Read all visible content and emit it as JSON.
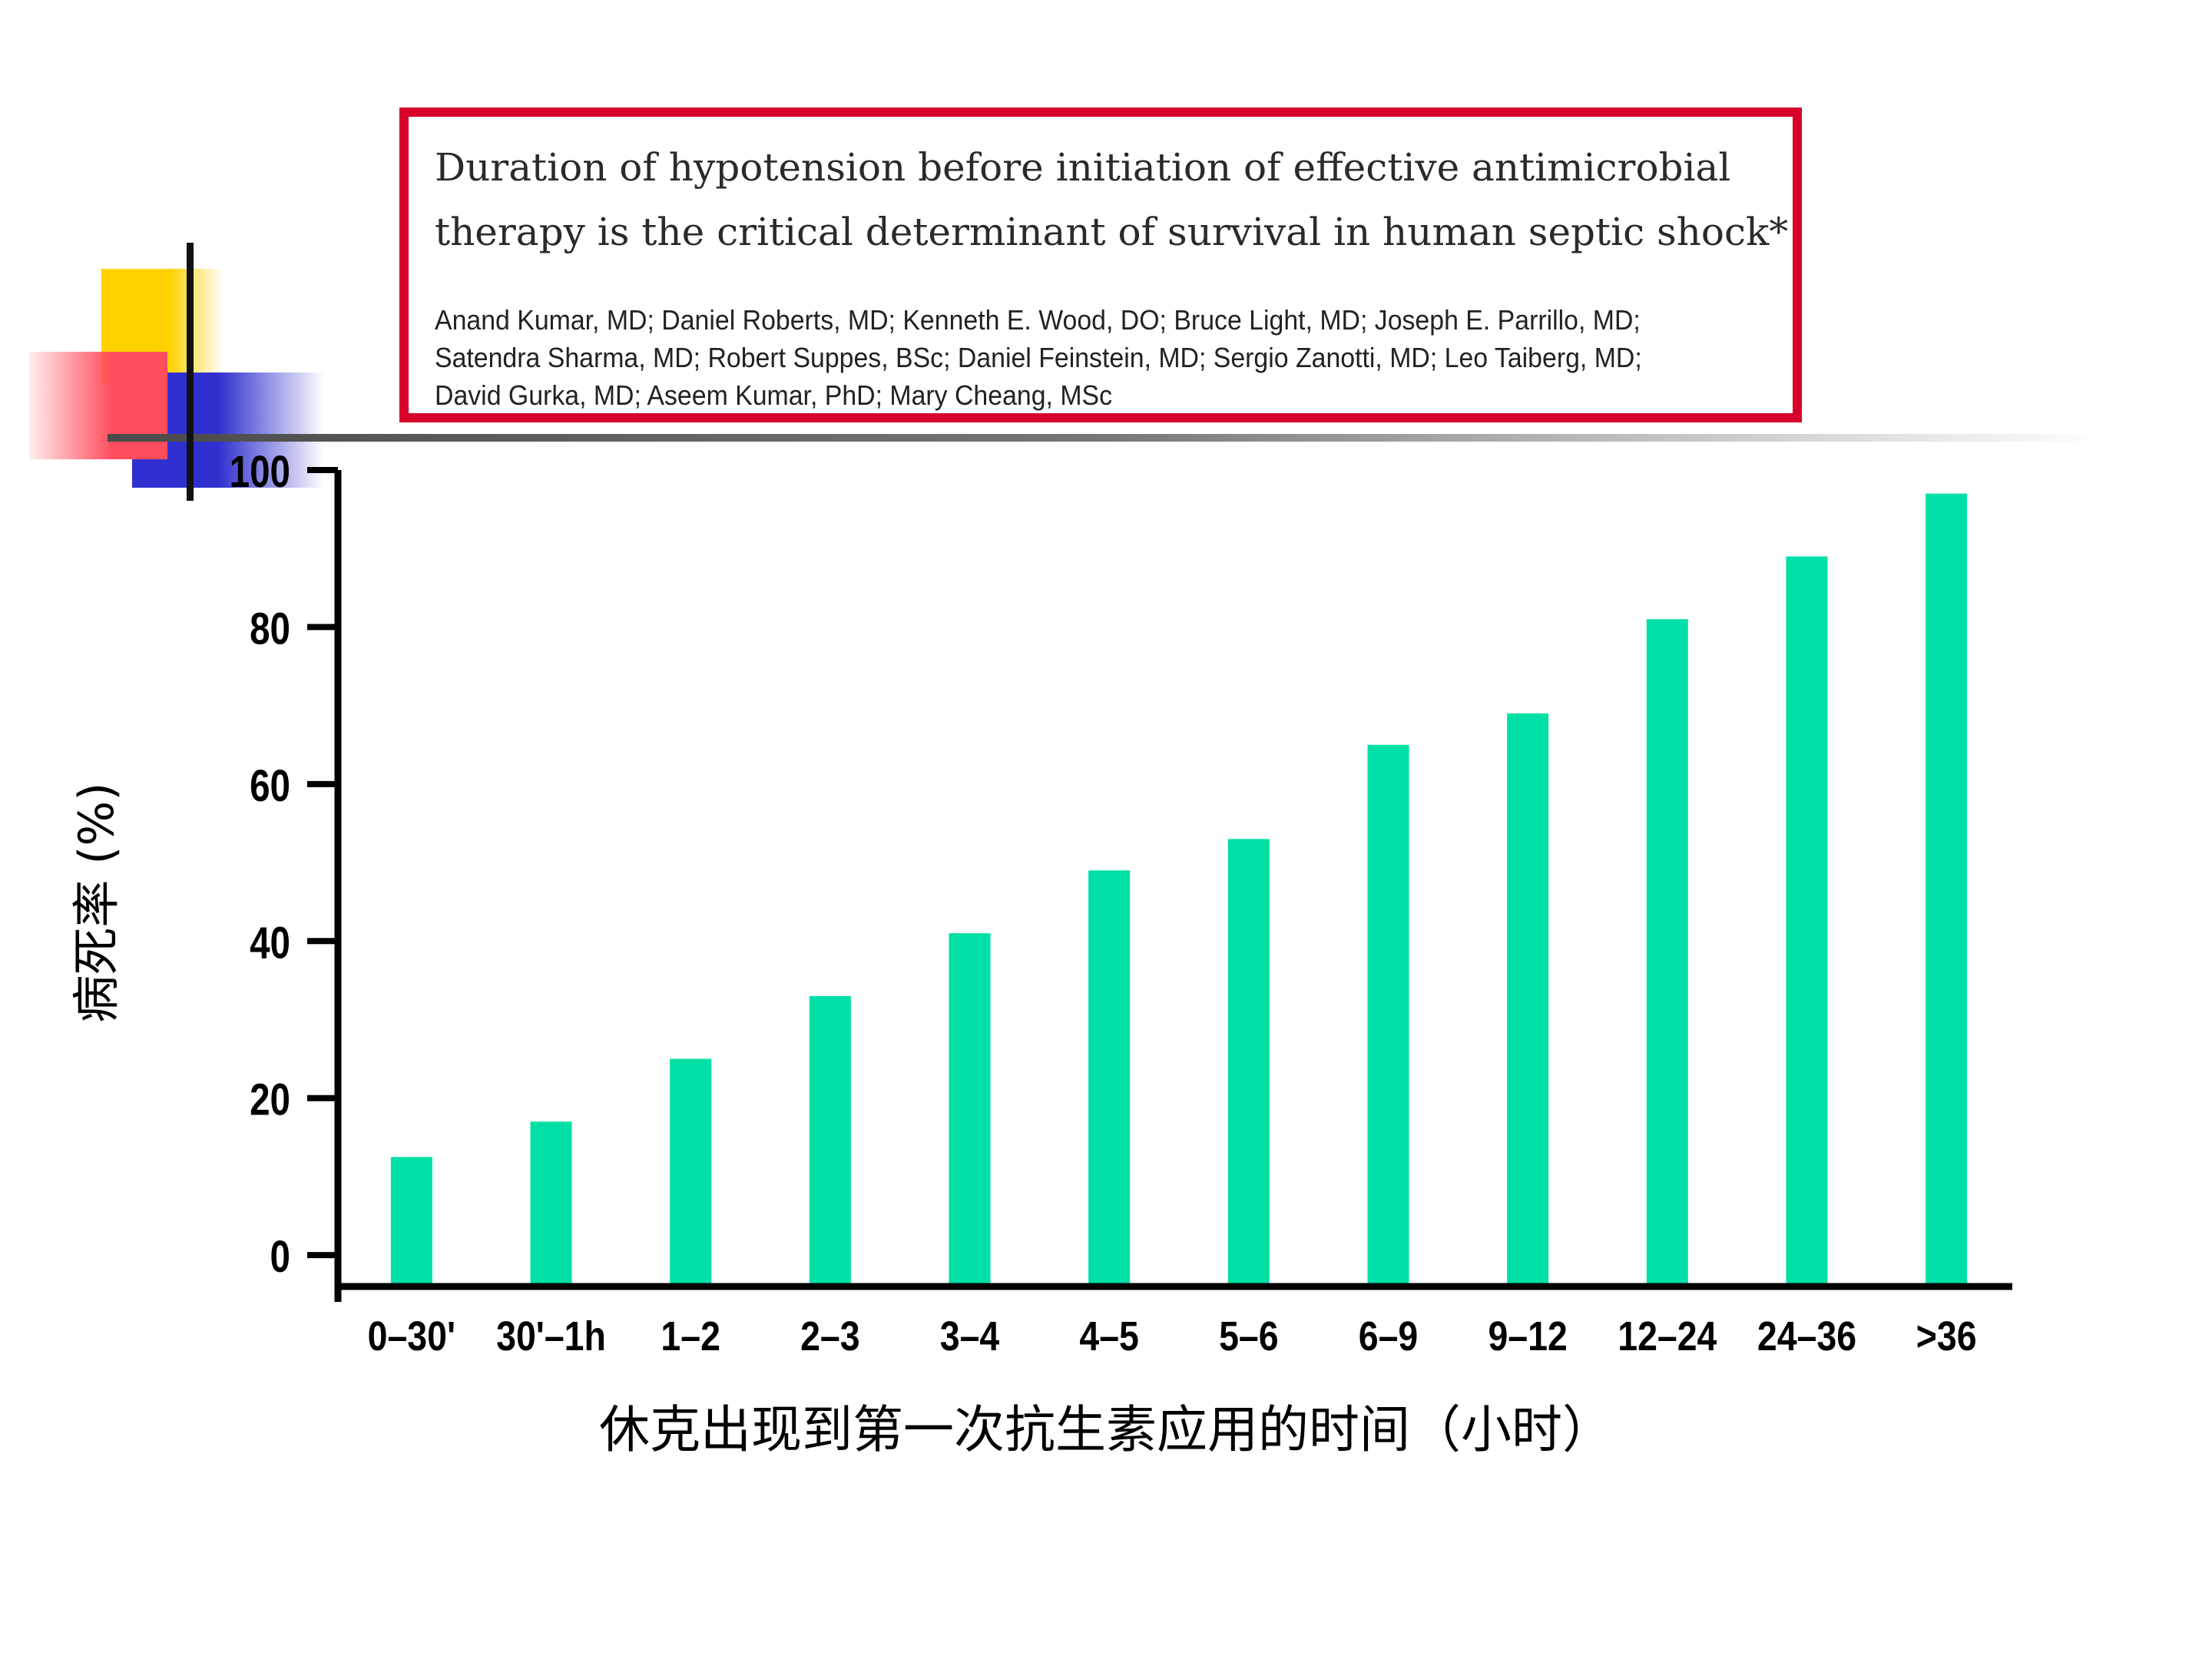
{
  "paper": {
    "title": "Duration of hypotension before initiation of effective antimicrobial therapy is the critical determinant of survival in human septic shock*",
    "authors": "Anand Kumar, MD; Daniel Roberts, MD; Kenneth E. Wood, DO; Bruce Light, MD; Joseph E. Parrillo, MD; Satendra Sharma, MD; Robert Suppes, BSc; Daniel Feinstein, MD; Sergio Zanotti, MD; Leo Taiberg, MD; David Gurka, MD; Aseem Kumar, PhD; Mary Cheang, MSc"
  },
  "colors": {
    "bar": "#00e0a6",
    "box_border": "#d6002a",
    "axis": "#000000"
  },
  "chart_data": {
    "type": "bar",
    "title": "",
    "xlabel": "休克出现到第一次抗生素应用的时间（小时）",
    "ylabel": "病死率 (%)",
    "categories": [
      "0–30'",
      "30'–1h",
      "1–2",
      "2–3",
      "3–4",
      "4–5",
      "5–6",
      "6–9",
      "9–12",
      "12–24",
      "24–36",
      ">36"
    ],
    "values": [
      12.5,
      17,
      25,
      33,
      41,
      49,
      53,
      65,
      69,
      81,
      89,
      97
    ],
    "y_ticks": [
      0,
      20,
      40,
      60,
      80,
      100
    ],
    "ylim": [
      -4,
      100
    ],
    "grid": false,
    "legend": "none"
  }
}
